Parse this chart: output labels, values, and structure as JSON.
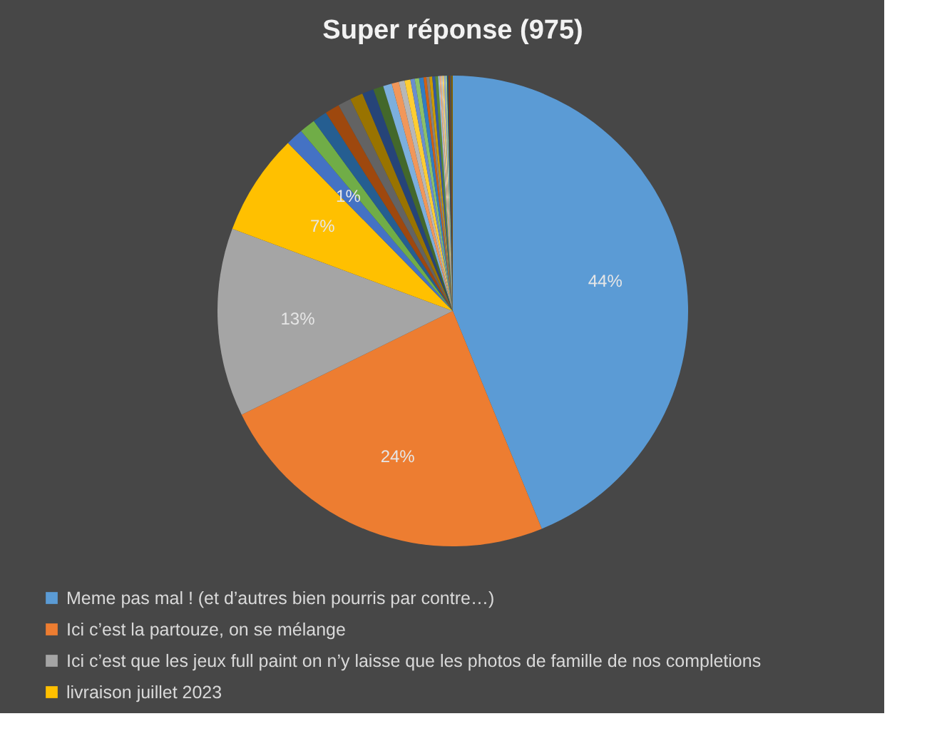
{
  "chart_data": {
    "type": "pie",
    "title": "Super réponse (975)",
    "categories": [
      "Meme pas mal ! (et d’autres bien pourris par contre…)",
      "Ici c’est la partouze, on se mélange",
      "Ici c’est que les jeux full paint on n’y laisse que les photos de famille de nos completions",
      "livraison juillet 2023",
      null,
      null,
      null,
      null,
      null,
      null,
      null,
      null,
      null,
      null,
      null,
      null,
      null,
      null,
      null,
      null,
      null,
      null,
      null,
      null,
      null,
      null,
      null,
      null,
      null,
      null,
      null,
      null,
      null,
      null
    ],
    "values": [
      44,
      24,
      13,
      7,
      1.2,
      1.1,
      1.0,
      1.0,
      0.9,
      0.9,
      0.8,
      0.7,
      0.6,
      0.5,
      0.4,
      0.4,
      0.3,
      0.3,
      0.3,
      0.2,
      0.2,
      0.2,
      0.2,
      0.2,
      0.1,
      0.1,
      0.1,
      0.1,
      0.1,
      0.1,
      0.1,
      0.1,
      0.1,
      0.1
    ],
    "colors": [
      "#5b9bd5",
      "#ed7d31",
      "#a5a5a5",
      "#ffc000",
      "#4472c4",
      "#70ad47",
      "#255e91",
      "#9e480e",
      "#636363",
      "#997300",
      "#264478",
      "#43682b",
      "#7cafdd",
      "#f1975a",
      "#b7b7b7",
      "#ffcd33",
      "#698ed0",
      "#8cc168",
      "#327dc2",
      "#d26012",
      "#848484",
      "#cc9a00",
      "#335aa1",
      "#5a8a39",
      "#9dc3e6",
      "#f5b183",
      "#c9c9c9",
      "#ffd966",
      "#8faadc",
      "#a9d18e",
      "#1f4e79",
      "#843c0c",
      "#525252",
      "#7f6000"
    ],
    "value_labels": [
      "44%",
      "24%",
      "13%",
      "7%",
      "1%",
      null,
      null,
      null,
      null,
      null,
      null,
      null,
      null,
      null,
      null,
      null,
      null,
      null,
      null,
      null,
      null,
      null,
      null,
      null,
      null,
      null,
      null,
      null,
      null,
      null,
      null,
      null,
      null,
      null
    ],
    "legend": "bottom"
  }
}
